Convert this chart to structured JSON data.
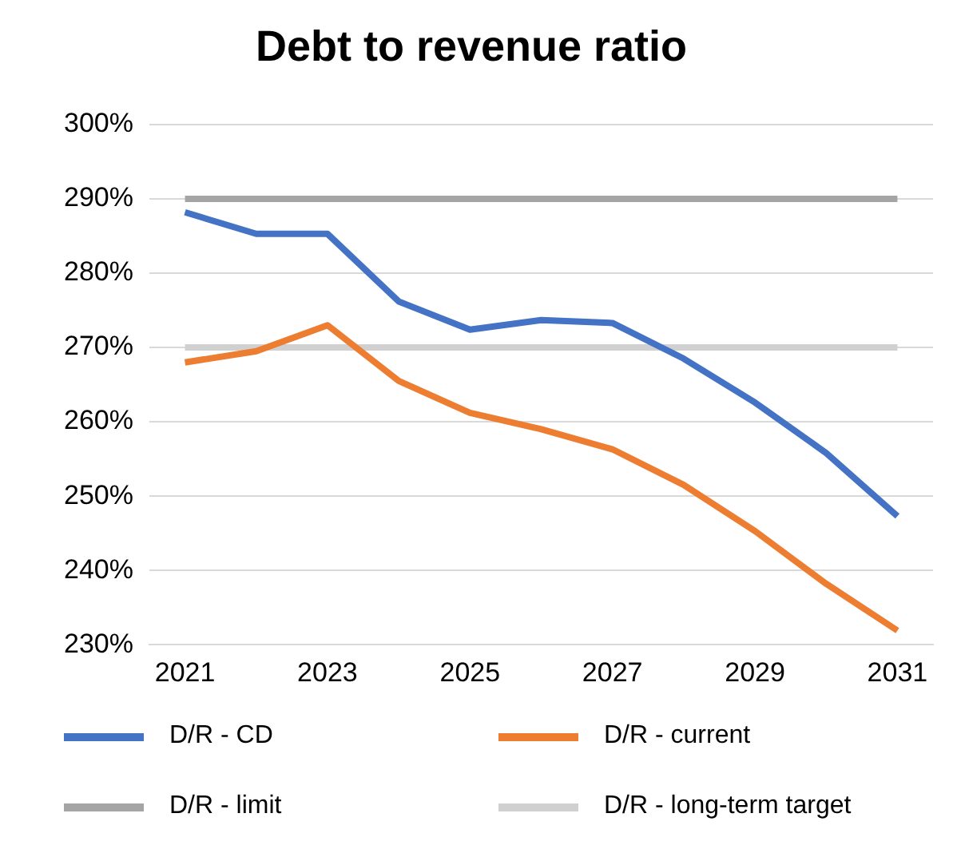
{
  "chart_data": {
    "type": "line",
    "title": "Debt to revenue ratio",
    "categories": [
      "2021",
      null,
      "2023",
      null,
      "2025",
      null,
      "2027",
      null,
      "2029",
      null,
      "2031"
    ],
    "series": [
      {
        "name": "D/R - CD",
        "color": "#4472c4",
        "values": [
          288.2,
          285.3,
          285.3,
          276.2,
          272.4,
          273.7,
          273.3,
          268.5,
          262.6,
          255.8,
          247.3
        ]
      },
      {
        "name": "D/R - current",
        "color": "#ed7d31",
        "values": [
          268,
          269.5,
          273,
          265.5,
          261.2,
          259,
          256.3,
          251.5,
          245.3,
          238.2,
          231.9
        ]
      },
      {
        "name": "D/R - limit",
        "color": "#a5a5a5",
        "values": [
          290,
          290,
          290,
          290,
          290,
          290,
          290,
          290,
          290,
          290,
          290
        ]
      },
      {
        "name": "D/R - long-term target",
        "color": "#d0d0d0",
        "values": [
          270,
          270,
          270,
          270,
          270,
          270,
          270,
          270,
          270,
          270,
          270
        ]
      }
    ],
    "ylim": [
      230,
      300
    ],
    "yticks": [
      {
        "value": 230,
        "label": "230%"
      },
      {
        "value": 240,
        "label": "240%"
      },
      {
        "value": 250,
        "label": "250%"
      },
      {
        "value": 260,
        "label": "260%"
      },
      {
        "value": 270,
        "label": "270%"
      },
      {
        "value": 280,
        "label": "280%"
      },
      {
        "value": 290,
        "label": "290%"
      },
      {
        "value": 300,
        "label": "300%"
      }
    ],
    "grid": "y",
    "legend": "bottom",
    "marker": "none",
    "line_style": "solid"
  }
}
